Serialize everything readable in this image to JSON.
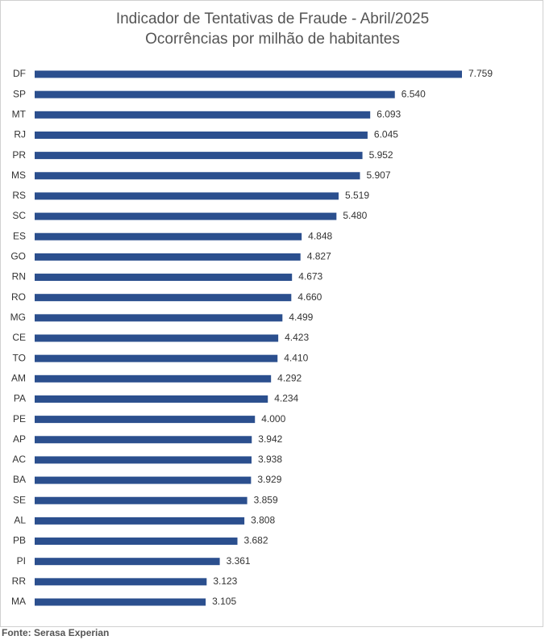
{
  "chart_data": {
    "type": "bar",
    "orientation": "horizontal",
    "title": "Indicador de Tentativas de Fraude - Abril/2025",
    "subtitle": "Ocorrências por milhão de habitantes",
    "source": "Fonte: Serasa Experian",
    "color": "#2b4f8e",
    "categories": [
      "DF",
      "SP",
      "MT",
      "RJ",
      "PR",
      "MS",
      "RS",
      "SC",
      "ES",
      "GO",
      "RN",
      "RO",
      "MG",
      "CE",
      "TO",
      "AM",
      "PA",
      "PE",
      "AP",
      "AC",
      "BA",
      "SE",
      "AL",
      "PB",
      "PI",
      "RR",
      "MA"
    ],
    "values": [
      7759,
      6540,
      6093,
      6045,
      5952,
      5907,
      5519,
      5480,
      4848,
      4827,
      4673,
      4660,
      4499,
      4423,
      4410,
      4292,
      4234,
      4000,
      3942,
      3938,
      3929,
      3859,
      3808,
      3682,
      3361,
      3123,
      3105
    ],
    "value_labels": [
      "7.759",
      "6.540",
      "6.093",
      "6.045",
      "5.952",
      "5.907",
      "5.519",
      "5.480",
      "4.848",
      "4.827",
      "4.673",
      "4.660",
      "4.499",
      "4.423",
      "4.410",
      "4.292",
      "4.234",
      "4.000",
      "3.942",
      "3.938",
      "3.929",
      "3.859",
      "3.808",
      "3.682",
      "3.361",
      "3.123",
      "3.105"
    ]
  }
}
